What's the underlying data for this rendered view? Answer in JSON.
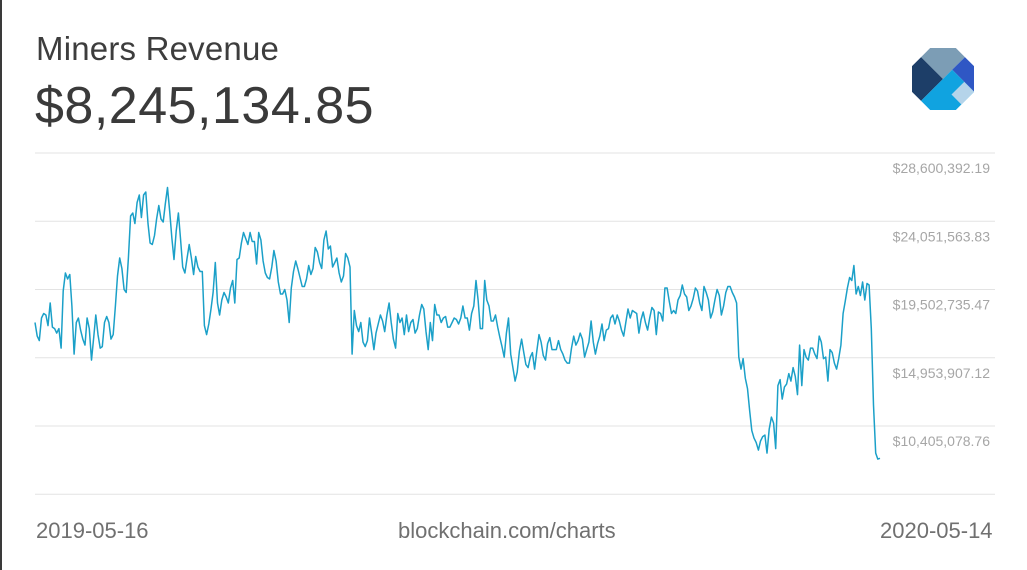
{
  "header": {
    "title": "Miners Revenue",
    "current_value": "$8,245,134.85"
  },
  "logo": {
    "icon": "blockchain-logo-icon",
    "colors": [
      "#7c9db5",
      "#1d3e68",
      "#2f57c4",
      "#10a3e0",
      "#b5d4ea"
    ]
  },
  "footer": {
    "start_date": "2019-05-16",
    "source": "blockchain.com/charts",
    "end_date": "2020-05-14"
  },
  "y_axis": {
    "ticks": [
      "$28,600,392.19",
      "$24,051,563.83",
      "$19,502,735.47",
      "$14,953,907.12",
      "$10,405,078.76"
    ]
  },
  "colors": {
    "line": "#1ba0c8",
    "grid": "#e3e3e3",
    "axis_text": "#a6a6a6"
  },
  "chart_data": {
    "type": "line",
    "title": "Miners Revenue",
    "subtitle": "$8,245,134.85",
    "xlabel": "",
    "ylabel": "",
    "x_start": "2019-05-16",
    "x_end": "2020-05-14",
    "x_tick_labels": [
      "2019-05-16",
      "2020-05-14"
    ],
    "y_tick_values": [
      28600392.19,
      24051563.83,
      19502735.47,
      14953907.12,
      10405078.76
    ],
    "ylim": [
      5856000,
      28600392.19
    ],
    "grid": true,
    "legend": "none",
    "annotation": "blockchain.com/charts",
    "series": [
      {
        "name": "Miners Revenue (USD)",
        "values": [
          17.3,
          16.4,
          16.1,
          17.6,
          17.9,
          17.8,
          17.1,
          18.6,
          17.0,
          16.9,
          16.6,
          16.9,
          15.6,
          19.4,
          20.6,
          20.2,
          20.5,
          18.4,
          15.2,
          17.3,
          17.6,
          16.8,
          16.2,
          15.8,
          17.6,
          16.9,
          14.8,
          16.3,
          17.8,
          16.5,
          15.6,
          15.7,
          17.3,
          17.7,
          17.3,
          16.2,
          16.5,
          18.4,
          20.4,
          21.6,
          20.9,
          19.5,
          19.3,
          21.6,
          24.4,
          24.6,
          23.9,
          25.3,
          25.8,
          24.3,
          25.8,
          26.0,
          23.9,
          22.6,
          22.5,
          23.1,
          24.2,
          25.1,
          24.2,
          24.0,
          25.2,
          26.3,
          24.7,
          22.9,
          21.5,
          23.4,
          24.6,
          22.9,
          21.0,
          20.6,
          21.6,
          22.5,
          21.6,
          20.5,
          21.7,
          21.0,
          20.7,
          20.7,
          17.1,
          16.5,
          17.2,
          18.2,
          19.3,
          21.3,
          18.6,
          17.8,
          18.8,
          19.3,
          19.0,
          18.6,
          19.6,
          20.1,
          18.6,
          21.5,
          21.6,
          22.6,
          23.3,
          22.9,
          22.5,
          23.3,
          22.7,
          22.7,
          21.2,
          23.3,
          22.8,
          21.4,
          20.6,
          20.3,
          20.2,
          21.0,
          22.1,
          21.4,
          20.0,
          19.2,
          19.2,
          19.5,
          18.8,
          17.3,
          19.6,
          20.7,
          21.4,
          20.9,
          20.3,
          19.7,
          19.7,
          20.2,
          21.1,
          20.5,
          20.9,
          22.3,
          22.0,
          21.3,
          20.9,
          22.8,
          23.4,
          22.2,
          22.4,
          21.0,
          21.3,
          21.6,
          20.6,
          20.0,
          20.4,
          21.9,
          21.6,
          21.0,
          15.2,
          18.1,
          17.1,
          16.7,
          17.3,
          16.0,
          15.7,
          16.1,
          17.6,
          16.6,
          15.5,
          16.6,
          17.2,
          17.8,
          17.4,
          16.7,
          17.8,
          18.6,
          17.3,
          16.2,
          15.6,
          17.9,
          17.3,
          17.6,
          16.5,
          17.8,
          16.7,
          17.3,
          17.5,
          16.6,
          16.9,
          17.8,
          18.5,
          18.2,
          16.7,
          15.5,
          17.3,
          16.1,
          18.5,
          17.8,
          17.8,
          17.3,
          17.6,
          17.7,
          17.0,
          17.0,
          17.3,
          17.6,
          17.5,
          17.2,
          17.6,
          18.4,
          17.6,
          17.6,
          16.8,
          17.9,
          18.4,
          20.1,
          18.8,
          16.9,
          16.9,
          20.1,
          18.8,
          18.4,
          17.4,
          17.4,
          17.8,
          17.0,
          16.3,
          15.7,
          15.0,
          16.6,
          17.6,
          15.2,
          14.3,
          13.4,
          14.0,
          15.4,
          16.2,
          15.3,
          14.5,
          14.3,
          15.0,
          15.3,
          14.2,
          15.4,
          16.5,
          16.0,
          15.1,
          14.8,
          15.9,
          16.3,
          15.5,
          15.5,
          15.5,
          16.1,
          15.5,
          15.2,
          14.8,
          14.6,
          14.6,
          15.6,
          16.4,
          15.8,
          16.1,
          16.6,
          16.2,
          15.0,
          15.5,
          16.0,
          17.4,
          16.0,
          15.2,
          15.9,
          16.4,
          17.2,
          16.1,
          16.8,
          16.9,
          17.6,
          17.8,
          17.2,
          17.8,
          17.4,
          16.8,
          16.4,
          17.3,
          18.2,
          17.6,
          18.1,
          18.0,
          17.9,
          16.6,
          17.5,
          18.0,
          17.3,
          16.8,
          17.6,
          18.3,
          18.1,
          16.5,
          18.0,
          17.9,
          17.4,
          19.6,
          19.6,
          18.7,
          17.9,
          18.1,
          17.9,
          18.8,
          19.1,
          19.8,
          19.2,
          19.0,
          18.1,
          18.4,
          18.9,
          19.6,
          19.4,
          18.6,
          18.1,
          19.7,
          19.3,
          18.8,
          17.6,
          18.0,
          18.8,
          19.5,
          19.1,
          17.8,
          18.4,
          19.3,
          19.7,
          19.7,
          19.3,
          19.0,
          18.6,
          15.0,
          14.2,
          14.9,
          13.6,
          12.9,
          11.4,
          10.1,
          9.6,
          9.3,
          8.8,
          9.4,
          9.7,
          9.8,
          8.6,
          10.2,
          11.0,
          10.6,
          8.9,
          13.1,
          13.5,
          12.2,
          13.0,
          13.2,
          13.9,
          13.4,
          14.3,
          13.7,
          12.5,
          15.8,
          13.1,
          15.5,
          15.0,
          14.8,
          15.6,
          15.6,
          15.2,
          14.9,
          16.4,
          16.0,
          14.9,
          15.0,
          13.4,
          15.5,
          15.3,
          14.6,
          14.2,
          14.9,
          15.8,
          17.9,
          18.7,
          19.6,
          20.3,
          20.1,
          21.1,
          19.2,
          19.7,
          19.1,
          20.0,
          18.8,
          19.9,
          19.8,
          16.9,
          11.8,
          8.6,
          8.2,
          8.25
        ],
        "unit": "millions USD (approx.)"
      }
    ]
  }
}
